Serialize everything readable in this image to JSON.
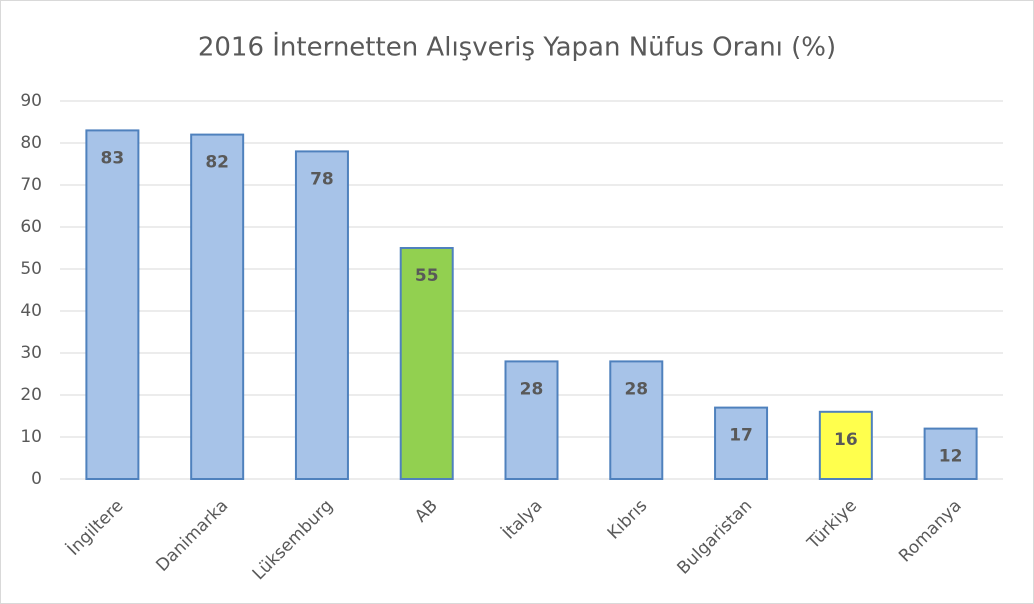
{
  "chart_data": {
    "type": "bar",
    "title": "2016 İnternetten Alışveriş Yapan Nüfus Oranı (%)",
    "categories": [
      "İngiltere",
      "Danimarka",
      "Lüksemburg",
      "AB",
      "İtalya",
      "Kıbrıs",
      "Bulgaristan",
      "Türkiye",
      "Romanya"
    ],
    "values": [
      83,
      82,
      78,
      55,
      28,
      28,
      17,
      16,
      12
    ],
    "colors": [
      "#a7c3e8",
      "#a7c3e8",
      "#a7c3e8",
      "#92d050",
      "#a7c3e8",
      "#a7c3e8",
      "#a7c3e8",
      "#ffff4d",
      "#a7c3e8"
    ],
    "edgecolor": "#4f81bd",
    "ylim": [
      0,
      90
    ],
    "yticks": [
      0,
      10,
      20,
      30,
      40,
      50,
      60,
      70,
      80,
      90
    ],
    "grid": true
  }
}
